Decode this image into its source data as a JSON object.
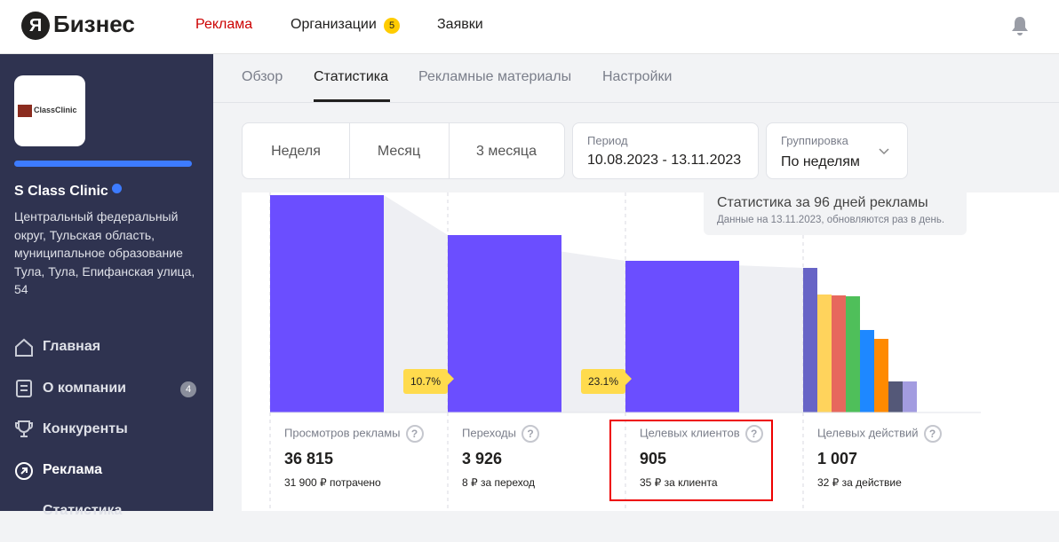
{
  "header": {
    "logo_mark": "Я",
    "logo_text": "Бизнес",
    "nav": [
      "Реклама",
      "Организации",
      "Заявки"
    ],
    "nav_badge": "5"
  },
  "sidebar": {
    "org_logo_text": "ClassClinic",
    "org_name": "S Class Clinic",
    "address": "Центральный федеральный округ, Тульская область, муниципальное образование Тула, Тула, Епифанская улица, 54",
    "menu": [
      "Главная",
      "О компании",
      "Конкуренты",
      "Реклама",
      "Статистика"
    ],
    "menu_badge": "4"
  },
  "tabs": [
    "Обзор",
    "Статистика",
    "Рекламные материалы",
    "Настройки"
  ],
  "filters": {
    "periods": [
      "Неделя",
      "Месяц",
      "3 месяца"
    ],
    "period_label": "Период",
    "period_value": "10.08.2023 - 13.11.2023",
    "grouping_label": "Группировка",
    "grouping_value": "По неделям"
  },
  "info": {
    "title": "Статистика за 96 дней рекламы",
    "subtitle": "Данные на 13.11.2023, обновляются раз в день."
  },
  "funnel": {
    "conversions": [
      "10.7%",
      "23.1%"
    ],
    "metrics": [
      {
        "label": "Просмотров рекламы",
        "value": "36 815",
        "note": "31 900 ₽ потрачено"
      },
      {
        "label": "Переходы",
        "value": "3 926",
        "note": "8 ₽ за переход"
      },
      {
        "label": "Целевых клиентов",
        "value": "905",
        "note": "35 ₽ за клиента"
      },
      {
        "label": "Целевых действий",
        "value": "1 007",
        "note": "32 ₽ за действие"
      }
    ]
  }
}
